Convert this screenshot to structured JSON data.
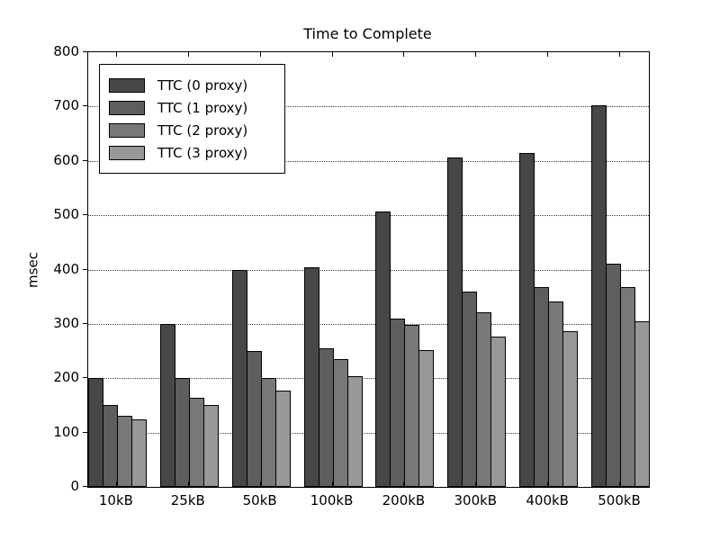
{
  "chart_data": {
    "type": "bar",
    "title": "Time to Complete",
    "xlabel": "",
    "ylabel": "msec",
    "categories": [
      "10kB",
      "25kB",
      "50kB",
      "100kB",
      "200kB",
      "300kB",
      "400kB",
      "500kB"
    ],
    "series": [
      {
        "name": "TTC (0 proxy)",
        "color": "#474747",
        "values": [
          200,
          300,
          400,
          404,
          507,
          606,
          615,
          703
        ]
      },
      {
        "name": "TTC (1 proxy)",
        "color": "#5e5e5e",
        "values": [
          150,
          200,
          250,
          255,
          310,
          360,
          368,
          410
        ]
      },
      {
        "name": "TTC (2 proxy)",
        "color": "#787878",
        "values": [
          131,
          164,
          200,
          235,
          298,
          322,
          342,
          367
        ]
      },
      {
        "name": "TTC (3 proxy)",
        "color": "#989898",
        "values": [
          125,
          150,
          177,
          204,
          251,
          277,
          287,
          305
        ]
      }
    ],
    "ylim": [
      0,
      800
    ],
    "yticks": [
      0,
      100,
      200,
      300,
      400,
      500,
      600,
      700,
      800
    ],
    "grid": "horizontal dotted",
    "legend_position": "upper left",
    "bar_edge_color": "#000000",
    "background_color": "#ffffff"
  }
}
